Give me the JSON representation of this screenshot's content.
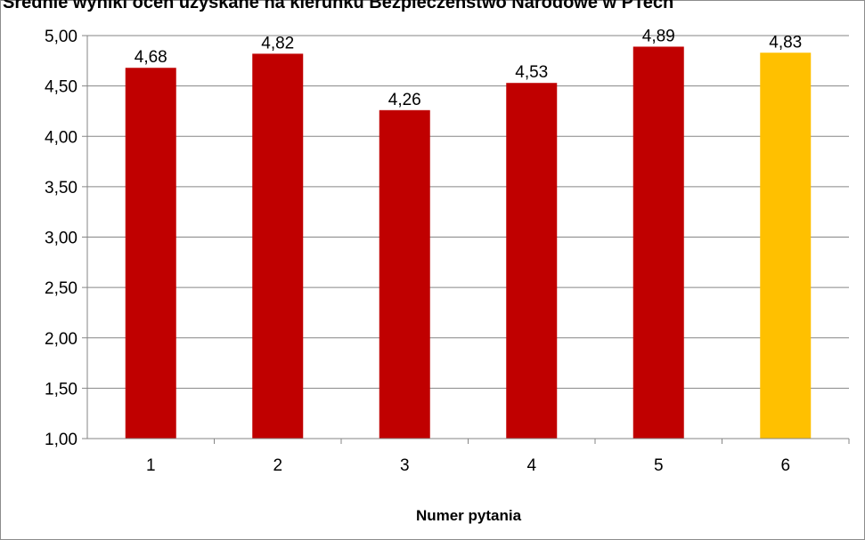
{
  "chart_data": {
    "type": "bar",
    "title": "Średnie wyniki ocen uzyskane na kierunku Bezpieczeństwo Narodowe w PTech",
    "xlabel": "Numer pytania",
    "ylabel": "",
    "categories": [
      "1",
      "2",
      "3",
      "4",
      "5",
      "6"
    ],
    "values": [
      4.68,
      4.82,
      4.26,
      4.53,
      4.89,
      4.83
    ],
    "value_labels": [
      "4,68",
      "4,82",
      "4,26",
      "4,53",
      "4,89",
      "4,83"
    ],
    "ylim": [
      1.0,
      5.0
    ],
    "ytick_labels": [
      "1,00",
      "1,50",
      "2,00",
      "2,50",
      "3,00",
      "3,50",
      "4,00",
      "4,50",
      "5,00"
    ],
    "grid": true,
    "legend": "none",
    "colors": {
      "bar": "#c00000",
      "highlight_bar": "#ffc000",
      "grid": "#868686"
    },
    "highlight_index": 5
  }
}
